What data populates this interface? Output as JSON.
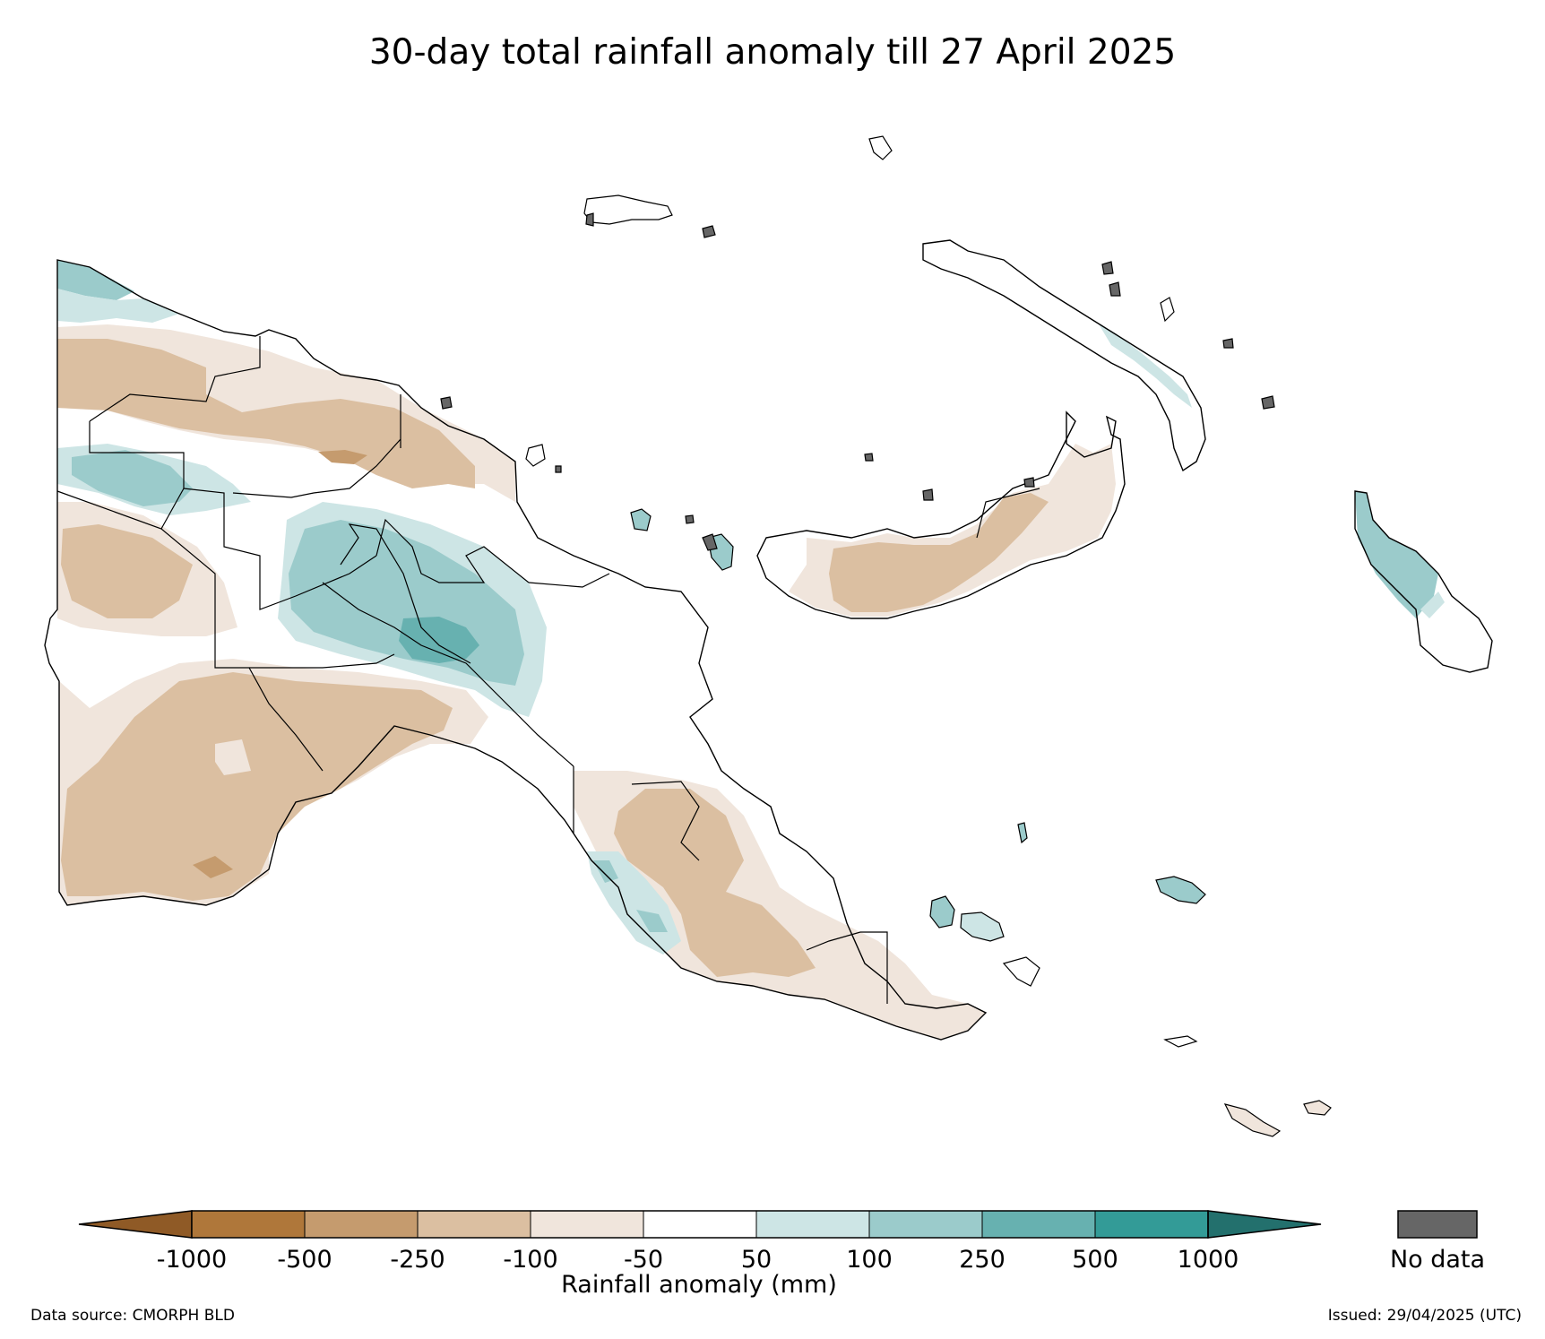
{
  "title": "30-day total rainfall anomaly till 27 April 2025",
  "colorbar": {
    "label": "Rainfall anomaly (mm)",
    "tick_labels": [
      "-1000",
      "-500",
      "-250",
      "-100",
      "-50",
      "50",
      "100",
      "250",
      "500",
      "1000"
    ],
    "bin_colors": [
      "#af773a",
      "#c59b6e",
      "#dbbfa1",
      "#f0e5dc",
      "#ffffff",
      "#cde5e5",
      "#9bcbcb",
      "#67b1b0",
      "#339b97"
    ],
    "under_color": "#8f5a26",
    "over_color": "#23706d",
    "no_data_label": "No data",
    "no_data_color": "#666666"
  },
  "footer": {
    "data_source": "Data source: CMORPH BLD",
    "issued": "Issued: 29/04/2025 (UTC)"
  },
  "map": {
    "region": "Papua New Guinea",
    "land_color": "#ffffff",
    "coast_color": "#000000"
  }
}
